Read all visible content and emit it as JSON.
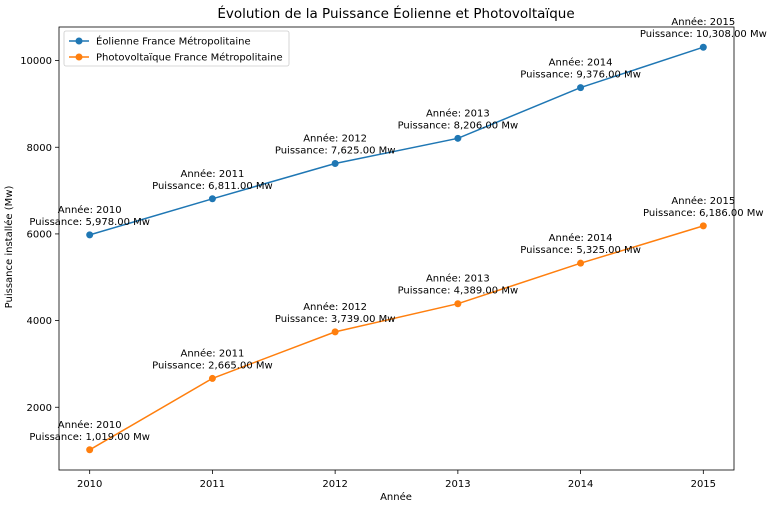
{
  "chart_data": {
    "type": "line",
    "title": "Évolution de la Puissance Éolienne et Photovoltaïque",
    "xlabel": "Année",
    "ylabel": "Puissance installée (Mw)",
    "x": [
      2010,
      2011,
      2012,
      2013,
      2014,
      2015
    ],
    "x_ticks": [
      "2010",
      "2011",
      "2012",
      "2013",
      "2014",
      "2015"
    ],
    "y_ticks": [
      "2000",
      "4000",
      "6000",
      "8000",
      "10000"
    ],
    "xlim": [
      2009.75,
      2015.25
    ],
    "ylim": [
      552,
      10775
    ],
    "grid": false,
    "legend_position": "top-left",
    "series": [
      {
        "name": "Éolienne France Métropolitaine",
        "color": "#1f77b4",
        "values": [
          5978,
          6811,
          7625,
          8206,
          9376,
          10308
        ],
        "annotations": [
          {
            "year_label": "Année: 2010",
            "value_label": "Puissance: 5,978.00 Mw"
          },
          {
            "year_label": "Année: 2011",
            "value_label": "Puissance: 6,811.00 Mw"
          },
          {
            "year_label": "Année: 2012",
            "value_label": "Puissance: 7,625.00 Mw"
          },
          {
            "year_label": "Année: 2013",
            "value_label": "Puissance: 8,206.00 Mw"
          },
          {
            "year_label": "Année: 2014",
            "value_label": "Puissance: 9,376.00 Mw"
          },
          {
            "year_label": "Année: 2015",
            "value_label": "Puissance: 10,308.00 Mw"
          }
        ]
      },
      {
        "name": "Photovoltaïque France Métropolitaine",
        "color": "#ff7f0e",
        "values": [
          1019,
          2665,
          3739,
          4389,
          5325,
          6186
        ],
        "annotations": [
          {
            "year_label": "Année: 2010",
            "value_label": "Puissance: 1,019.00 Mw"
          },
          {
            "year_label": "Année: 2011",
            "value_label": "Puissance: 2,665.00 Mw"
          },
          {
            "year_label": "Année: 2012",
            "value_label": "Puissance: 3,739.00 Mw"
          },
          {
            "year_label": "Année: 2013",
            "value_label": "Puissance: 4,389.00 Mw"
          },
          {
            "year_label": "Année: 2014",
            "value_label": "Puissance: 5,325.00 Mw"
          },
          {
            "year_label": "Année: 2015",
            "value_label": "Puissance: 6,186.00 Mw"
          }
        ]
      }
    ]
  }
}
